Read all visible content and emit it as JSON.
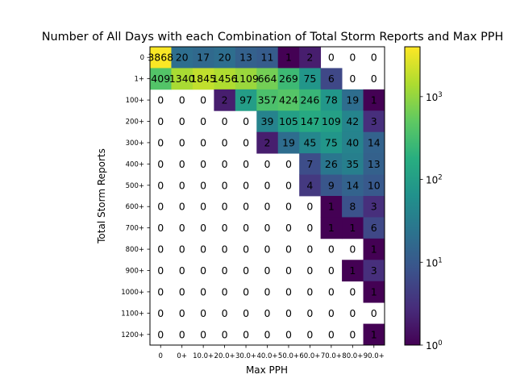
{
  "chart_data": {
    "type": "heatmap",
    "title": "Number of All Days with each Combination of Total Storm Reports and Max PPH",
    "xlabel": "Max PPH",
    "ylabel": "Total Storm Reports",
    "x_categories": [
      "0",
      "0+",
      "10.0+",
      "20.0+",
      "30.0+",
      "40.0+",
      "50.0+",
      "60.0+",
      "70.0+",
      "80.0+",
      "90.0+"
    ],
    "y_categories": [
      "0",
      "1+",
      "100+",
      "200+",
      "300+",
      "400+",
      "500+",
      "600+",
      "700+",
      "800+",
      "900+",
      "1000+",
      "1100+",
      "1200+"
    ],
    "values": [
      [
        3868,
        20,
        17,
        20,
        13,
        11,
        1,
        2,
        0,
        0,
        0
      ],
      [
        409,
        1340,
        1845,
        1456,
        1109,
        664,
        269,
        75,
        6,
        0,
        0
      ],
      [
        0,
        0,
        0,
        2,
        97,
        357,
        424,
        246,
        78,
        19,
        1
      ],
      [
        0,
        0,
        0,
        0,
        0,
        39,
        105,
        147,
        109,
        42,
        3
      ],
      [
        0,
        0,
        0,
        0,
        0,
        2,
        19,
        45,
        75,
        40,
        14
      ],
      [
        0,
        0,
        0,
        0,
        0,
        0,
        0,
        7,
        26,
        35,
        13
      ],
      [
        0,
        0,
        0,
        0,
        0,
        0,
        0,
        4,
        9,
        14,
        10
      ],
      [
        0,
        0,
        0,
        0,
        0,
        0,
        0,
        0,
        1,
        8,
        3
      ],
      [
        0,
        0,
        0,
        0,
        0,
        0,
        0,
        0,
        1,
        1,
        6
      ],
      [
        0,
        0,
        0,
        0,
        0,
        0,
        0,
        0,
        0,
        0,
        1
      ],
      [
        0,
        0,
        0,
        0,
        0,
        0,
        0,
        0,
        0,
        1,
        3
      ],
      [
        0,
        0,
        0,
        0,
        0,
        0,
        0,
        0,
        0,
        0,
        1
      ],
      [
        0,
        0,
        0,
        0,
        0,
        0,
        0,
        0,
        0,
        0,
        0
      ],
      [
        0,
        0,
        0,
        0,
        0,
        0,
        0,
        0,
        0,
        0,
        1
      ]
    ],
    "color_scale": "log",
    "colormap": "viridis",
    "zero_cells": "blank",
    "colorbar": {
      "range": [
        1,
        4000
      ],
      "ticks": [
        {
          "value": 1,
          "label": "10",
          "exp": "0"
        },
        {
          "value": 10,
          "label": "10",
          "exp": "1"
        },
        {
          "value": 100,
          "label": "10",
          "exp": "2"
        },
        {
          "value": 1000,
          "label": "10",
          "exp": "3"
        }
      ]
    }
  }
}
